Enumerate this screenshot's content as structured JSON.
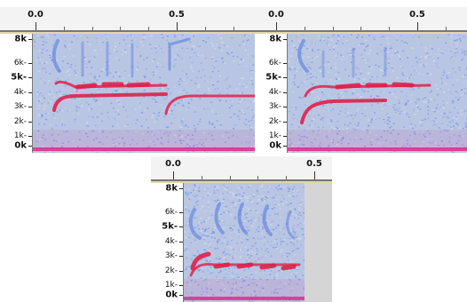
{
  "spectrograms": [
    {
      "name": "spectrogram-top-left",
      "ruler_labels": [
        "0.0",
        "0.5"
      ],
      "y_labels": [
        "8k",
        "6k-",
        "5k-",
        "4k-",
        "3k-",
        "2k-",
        "1k-",
        "0k"
      ]
    },
    {
      "name": "spectrogram-top-right",
      "ruler_labels": [
        "0.0",
        "0.5"
      ],
      "y_labels": [
        "8k",
        "6k-",
        "5k-",
        "4k-",
        "3k-",
        "2k-",
        "1k-",
        "0k"
      ]
    },
    {
      "name": "spectrogram-bottom",
      "ruler_labels": [
        "0.0",
        "0.5"
      ],
      "y_labels": [
        "8k",
        "6k-",
        "5k-",
        "4k-",
        "3k-",
        "2k-",
        "1k-",
        "0k"
      ]
    }
  ],
  "colors": {
    "background_noise": "#b9c6e3",
    "noise_blue": "#6f8fe0",
    "signal_pink": "#d83aa0",
    "signal_red": "#e0204a",
    "baseline_magenta": "#e02a8a",
    "empty_region": "#d5d5d5"
  }
}
